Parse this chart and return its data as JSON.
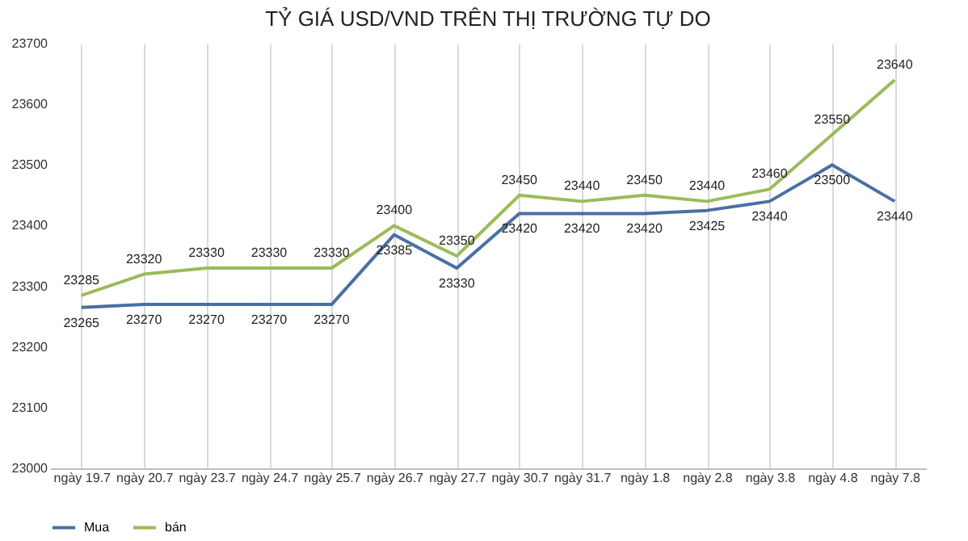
{
  "chart_data": {
    "type": "line",
    "title": "TỶ GIÁ USD/VND TRÊN THỊ TRƯỜNG TỰ DO",
    "categories": [
      "ngày 19.7",
      "ngày 20.7",
      "ngày 23.7",
      "ngày 24.7",
      "ngày 25.7",
      "ngày 26.7",
      "ngày 27.7",
      "ngày 30.7",
      "ngày 31.7",
      "ngày 1.8",
      "ngày 2.8",
      "ngày 3.8",
      "ngày 4.8",
      "ngày 7.8"
    ],
    "series": [
      {
        "name": "Mua",
        "color": "#4a6fa5",
        "values": [
          23265,
          23270,
          23270,
          23270,
          23270,
          23385,
          23330,
          23420,
          23420,
          23420,
          23425,
          23440,
          23500,
          23440
        ]
      },
      {
        "name": "bán",
        "color": "#9bbb59",
        "values": [
          23285,
          23320,
          23330,
          23330,
          23330,
          23400,
          23350,
          23450,
          23440,
          23450,
          23440,
          23460,
          23550,
          23640
        ]
      }
    ],
    "ylim": [
      23000,
      23700
    ],
    "yticks": [
      23000,
      23100,
      23200,
      23300,
      23400,
      23500,
      23600,
      23700
    ],
    "grid": "x",
    "legend": "bottom",
    "data_labels": true,
    "marker": "none",
    "line_style": "solid"
  }
}
